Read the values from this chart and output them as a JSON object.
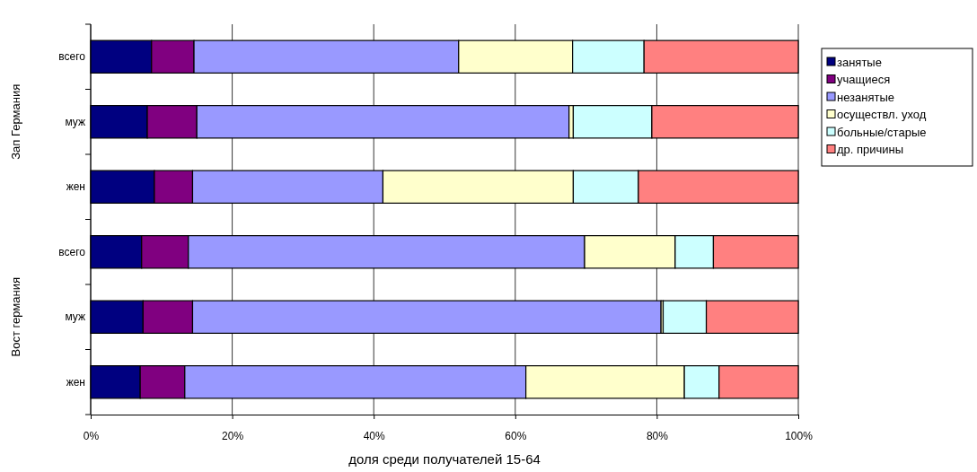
{
  "chart_data": {
    "type": "bar",
    "orientation": "horizontal",
    "stacked": true,
    "categories": [
      "всего",
      "муж",
      "жен",
      "всего",
      "муж",
      "жен"
    ],
    "xlabel": "доля среди получателей 15-64",
    "annotations": [
      "Зап Германия",
      "Вост германия"
    ],
    "xlim": [
      0,
      100
    ],
    "xticks": [
      {
        "value": 0,
        "label": "0%"
      },
      {
        "value": 20,
        "label": "20%"
      },
      {
        "value": 40,
        "label": "40%"
      },
      {
        "value": 60,
        "label": "60%"
      },
      {
        "value": 80,
        "label": "80%"
      },
      {
        "value": 100,
        "label": "100%"
      }
    ],
    "grid": "x",
    "legend": "right",
    "series": [
      {
        "name": "занятые",
        "color": "#000080",
        "values": [
          8.6,
          8.0,
          9.0,
          7.2,
          7.4,
          7.0
        ]
      },
      {
        "name": "учащиеся",
        "color": "#800080",
        "values": [
          6.0,
          7.0,
          5.4,
          6.6,
          7.0,
          6.3
        ]
      },
      {
        "name": "незанятые",
        "color": "#9999ff",
        "values": [
          37.4,
          52.6,
          26.9,
          56.0,
          66.2,
          48.2
        ]
      },
      {
        "name": "осуществл. уход",
        "color": "#ffffcc",
        "values": [
          16.1,
          0.6,
          26.9,
          12.8,
          0.3,
          22.4
        ]
      },
      {
        "name": "больные/старые",
        "color": "#ccffff",
        "values": [
          10.1,
          11.1,
          9.2,
          5.4,
          6.1,
          4.9
        ]
      },
      {
        "name": "др. причины",
        "color": "#ff8080",
        "values": [
          21.8,
          20.7,
          22.6,
          12.0,
          13.0,
          11.2
        ]
      }
    ]
  }
}
